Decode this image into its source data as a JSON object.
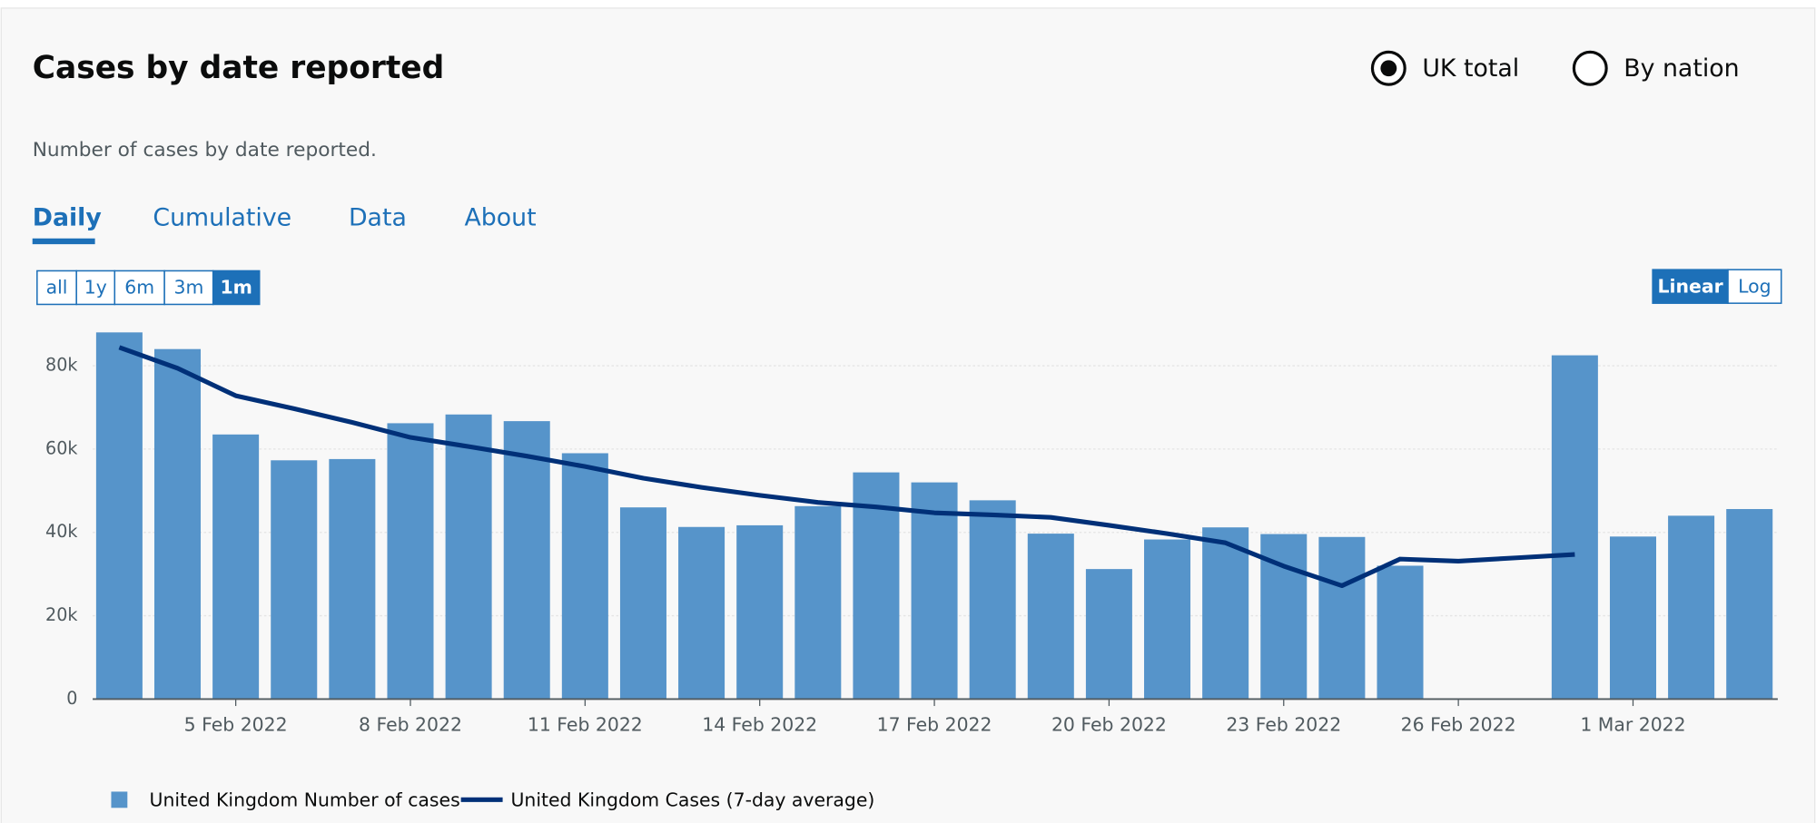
{
  "header": {
    "options": [
      "UK total",
      "By nation"
    ],
    "selected": 0
  },
  "description": "Number of cases by date reported.",
  "tabs": [
    "Daily",
    "Cumulative",
    "Data",
    "About"
  ],
  "ranges": [
    "all",
    "1y",
    "6m",
    "3m",
    "1m"
  ],
  "scales": [
    "Linear",
    "Log"
  ],
  "chart_data": {
    "type": "bar",
    "title": "Cases by date reported",
    "categories": [
      null,
      null,
      "5 Feb 2022",
      null,
      null,
      "8 Feb 2022",
      null,
      null,
      "11 Feb 2022",
      null,
      null,
      "14 Feb 2022",
      null,
      null,
      "17 Feb 2022",
      null,
      null,
      "20 Feb 2022",
      null,
      null,
      "23 Feb 2022",
      null,
      null,
      "26 Feb 2022",
      null,
      null,
      "1 Mar 2022",
      null,
      null
    ],
    "series": [
      {
        "name": "United Kingdom Number of cases",
        "type": "bar",
        "color": "#5694ca",
        "values": [
          88000,
          84000,
          63500,
          57300,
          57600,
          66200,
          68300,
          66700,
          59000,
          46000,
          41300,
          41700,
          46300,
          54400,
          52000,
          47700,
          39700,
          31200,
          38300,
          41200,
          39600,
          38900,
          32000,
          null,
          null,
          82500,
          39000,
          44000,
          45600
        ]
      },
      {
        "name": "United Kingdom Cases (7-day average)",
        "type": "line",
        "color": "#003078",
        "values": [
          84400,
          79400,
          72800,
          69700,
          66400,
          62800,
          60600,
          58300,
          55800,
          53000,
          50800,
          48900,
          47200,
          46100,
          44700,
          44200,
          43600,
          41700,
          39700,
          37500,
          31900,
          27200,
          33600,
          33100,
          33900,
          34700,
          null,
          null,
          null
        ]
      }
    ],
    "ylim": [
      0,
      90000
    ],
    "yticks": [
      0,
      {
        "value": 20000,
        "label": "20k"
      },
      {
        "value": 40000,
        "label": "40k"
      },
      {
        "value": 60000,
        "label": "60k"
      },
      {
        "value": 80000,
        "label": "80k"
      }
    ],
    "grid": true
  }
}
